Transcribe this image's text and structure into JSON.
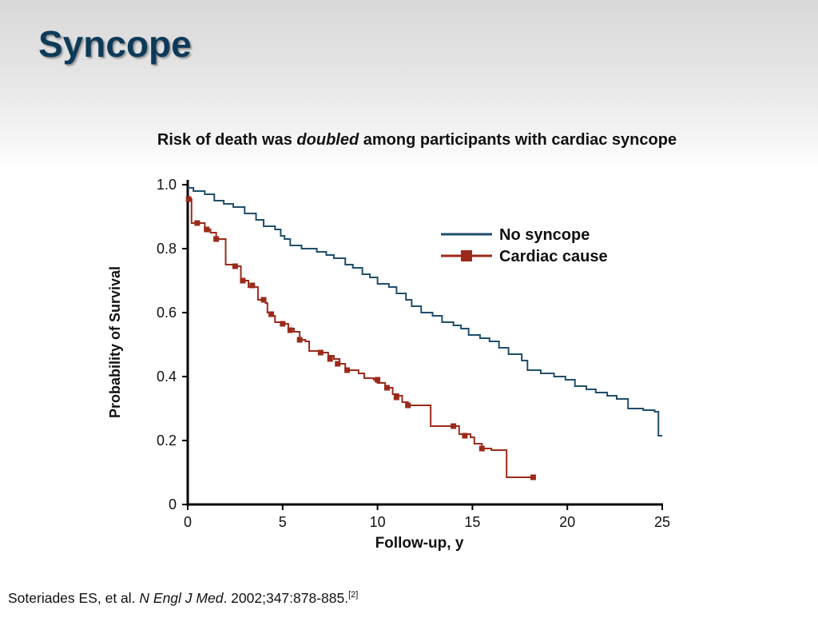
{
  "slide": {
    "title": "Syncope",
    "subtitle_pre": "Risk of death was ",
    "subtitle_em": "doubled",
    "subtitle_post": " among participants with cardiac syncope",
    "citation_pre": "Soteriades ES, et al. ",
    "citation_journal": "N Engl J Med",
    "citation_post": ". 2002;347:878-885.",
    "citation_ref": "[2]"
  },
  "colors": {
    "title": "#0e3a5a",
    "no_syncope": "#1f4e6b",
    "cardiac_cause": "#9b2a1a"
  },
  "chart_data": {
    "type": "line",
    "subtype": "kaplan-meier step",
    "title": "",
    "xlabel": "Follow-up, y",
    "ylabel": "Probability of Survival",
    "xlim": [
      0,
      25
    ],
    "ylim": [
      0,
      1.0
    ],
    "x_ticks": [
      0,
      5,
      10,
      15,
      20,
      25
    ],
    "x_tick_labels": [
      "0",
      "5",
      "10",
      "15",
      "20",
      "25"
    ],
    "y_ticks": [
      0,
      0.2,
      0.4,
      0.6,
      0.8,
      1.0
    ],
    "y_tick_labels": [
      "0",
      "0.2",
      "0.4",
      "0.6",
      "0.8",
      "1.0"
    ],
    "grid": false,
    "legend_position": "top-right",
    "series": [
      {
        "name": "No syncope",
        "color": "#1f4e6b",
        "marker": "none",
        "points": [
          [
            0,
            0.99
          ],
          [
            0.3,
            0.98
          ],
          [
            0.9,
            0.97
          ],
          [
            1.4,
            0.95
          ],
          [
            1.9,
            0.94
          ],
          [
            2.4,
            0.93
          ],
          [
            3.0,
            0.91
          ],
          [
            3.6,
            0.89
          ],
          [
            4.0,
            0.87
          ],
          [
            4.6,
            0.86
          ],
          [
            4.9,
            0.84
          ],
          [
            5.1,
            0.83
          ],
          [
            5.4,
            0.81
          ],
          [
            6.0,
            0.8
          ],
          [
            6.8,
            0.79
          ],
          [
            7.3,
            0.78
          ],
          [
            7.7,
            0.77
          ],
          [
            8.3,
            0.75
          ],
          [
            8.7,
            0.74
          ],
          [
            9.2,
            0.72
          ],
          [
            9.6,
            0.71
          ],
          [
            10.0,
            0.69
          ],
          [
            10.6,
            0.68
          ],
          [
            11.0,
            0.66
          ],
          [
            11.5,
            0.64
          ],
          [
            11.8,
            0.62
          ],
          [
            12.3,
            0.6
          ],
          [
            12.9,
            0.59
          ],
          [
            13.4,
            0.57
          ],
          [
            14.0,
            0.56
          ],
          [
            14.4,
            0.55
          ],
          [
            14.8,
            0.53
          ],
          [
            15.4,
            0.52
          ],
          [
            15.9,
            0.51
          ],
          [
            16.4,
            0.49
          ],
          [
            16.9,
            0.47
          ],
          [
            17.6,
            0.45
          ],
          [
            17.9,
            0.42
          ],
          [
            18.6,
            0.41
          ],
          [
            19.3,
            0.4
          ],
          [
            19.9,
            0.39
          ],
          [
            20.4,
            0.37
          ],
          [
            21.0,
            0.36
          ],
          [
            21.5,
            0.35
          ],
          [
            22.1,
            0.34
          ],
          [
            22.6,
            0.33
          ],
          [
            23.2,
            0.3
          ],
          [
            24.0,
            0.295
          ],
          [
            24.6,
            0.29
          ],
          [
            24.8,
            0.215
          ],
          [
            25.0,
            0.215
          ]
        ]
      },
      {
        "name": "Cardiac cause",
        "color": "#9b2a1a",
        "marker": "square",
        "points": [
          [
            0,
            0.955
          ],
          [
            0.2,
            0.88
          ],
          [
            0.5,
            0.88
          ],
          [
            0.9,
            0.86
          ],
          [
            1.2,
            0.85
          ],
          [
            1.5,
            0.83
          ],
          [
            1.9,
            0.83
          ],
          [
            2.0,
            0.75
          ],
          [
            2.5,
            0.745
          ],
          [
            2.8,
            0.7
          ],
          [
            3.2,
            0.68
          ],
          [
            3.5,
            0.68
          ],
          [
            3.7,
            0.64
          ],
          [
            4.1,
            0.63
          ],
          [
            4.2,
            0.6
          ],
          [
            4.5,
            0.59
          ],
          [
            4.6,
            0.57
          ],
          [
            5.0,
            0.565
          ],
          [
            5.3,
            0.55
          ],
          [
            5.6,
            0.54
          ],
          [
            5.9,
            0.515
          ],
          [
            6.2,
            0.51
          ],
          [
            6.4,
            0.48
          ],
          [
            6.9,
            0.48
          ],
          [
            7.0,
            0.475
          ],
          [
            7.4,
            0.465
          ],
          [
            7.7,
            0.455
          ],
          [
            8.0,
            0.44
          ],
          [
            8.3,
            0.42
          ],
          [
            8.7,
            0.42
          ],
          [
            9.0,
            0.41
          ],
          [
            9.3,
            0.395
          ],
          [
            9.8,
            0.39
          ],
          [
            10.0,
            0.38
          ],
          [
            10.4,
            0.365
          ],
          [
            10.8,
            0.345
          ],
          [
            11.1,
            0.34
          ],
          [
            11.3,
            0.32
          ],
          [
            11.6,
            0.31
          ],
          [
            12.8,
            0.245
          ],
          [
            13.4,
            0.245
          ],
          [
            14.0,
            0.245
          ],
          [
            14.3,
            0.22
          ],
          [
            14.6,
            0.22
          ],
          [
            14.9,
            0.21
          ],
          [
            15.1,
            0.19
          ],
          [
            15.5,
            0.175
          ],
          [
            16.0,
            0.17
          ],
          [
            16.8,
            0.085
          ],
          [
            18.2,
            0.085
          ]
        ],
        "marker_points": [
          [
            0.05,
            0.955
          ],
          [
            0.5,
            0.88
          ],
          [
            1.0,
            0.86
          ],
          [
            1.5,
            0.83
          ],
          [
            2.5,
            0.745
          ],
          [
            2.9,
            0.7
          ],
          [
            3.4,
            0.685
          ],
          [
            4.0,
            0.64
          ],
          [
            4.4,
            0.595
          ],
          [
            5.0,
            0.565
          ],
          [
            5.4,
            0.545
          ],
          [
            5.9,
            0.515
          ],
          [
            7.0,
            0.475
          ],
          [
            7.5,
            0.455
          ],
          [
            7.9,
            0.44
          ],
          [
            8.4,
            0.42
          ],
          [
            10.0,
            0.39
          ],
          [
            10.5,
            0.365
          ],
          [
            11.0,
            0.335
          ],
          [
            11.6,
            0.31
          ],
          [
            14.0,
            0.245
          ],
          [
            14.6,
            0.215
          ],
          [
            15.5,
            0.175
          ],
          [
            18.2,
            0.085
          ]
        ]
      }
    ]
  }
}
